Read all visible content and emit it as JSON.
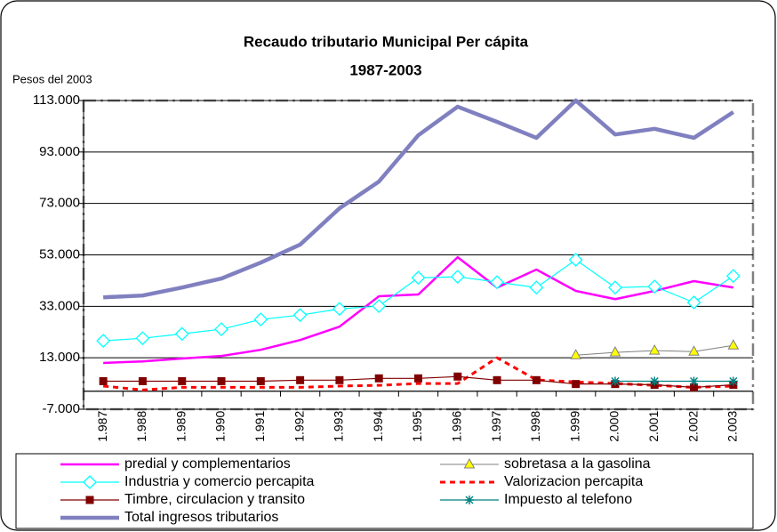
{
  "chart_data": {
    "type": "line",
    "title": "Recaudo tributario Municipal Per cápita",
    "subtitle": "1987-2003",
    "y_label": "Pesos del 2003",
    "categories": [
      "1.987",
      "1.988",
      "1.989",
      "1.990",
      "1.991",
      "1.992",
      "1.993",
      "1.994",
      "1.995",
      "1.996",
      "1.997",
      "1.998",
      "1.999",
      "2.000",
      "2.001",
      "2.002",
      "2.003"
    ],
    "ylim": [
      -7000,
      113000
    ],
    "yticks": [
      {
        "value": -7000,
        "label": "-7.000"
      },
      {
        "value": 13000,
        "label": "13.000"
      },
      {
        "value": 33000,
        "label": "33.000"
      },
      {
        "value": 53000,
        "label": "53.000"
      },
      {
        "value": 73000,
        "label": "73.000"
      },
      {
        "value": 93000,
        "label": "93.000"
      },
      {
        "value": 113000,
        "label": "113.000"
      }
    ],
    "grid": true,
    "series": [
      {
        "name": "predial y complementarios",
        "color": "#ff00ff",
        "width": 2.5,
        "marker": "none",
        "dashed": false,
        "values": [
          11000,
          11600,
          12700,
          13700,
          16100,
          19900,
          25100,
          36900,
          37600,
          52100,
          40300,
          47300,
          39000,
          35800,
          39000,
          42800,
          40300
        ]
      },
      {
        "name": "sobretasa a la gasolina",
        "color": "#808080",
        "width": 1,
        "marker": "triangle",
        "dashed": false,
        "values": [
          null,
          null,
          null,
          null,
          null,
          null,
          null,
          null,
          null,
          null,
          null,
          null,
          14000,
          15100,
          15800,
          15400,
          17800
        ]
      },
      {
        "name": "Industria y comercio percapita",
        "color": "#00ffff",
        "width": 1.2,
        "marker": "diamond",
        "dashed": false,
        "values": [
          19600,
          20600,
          22300,
          24100,
          27900,
          29600,
          32000,
          33100,
          44100,
          44500,
          42400,
          40300,
          51100,
          40300,
          40700,
          34500,
          44800
        ]
      },
      {
        "name": "Valorizacion percapita",
        "color": "#ff0000",
        "width": 3,
        "marker": "none",
        "dashed": true,
        "values": [
          2000,
          500,
          1500,
          1500,
          1500,
          1500,
          2000,
          2300,
          3000,
          3000,
          13000,
          4400,
          3600,
          3000,
          2300,
          1500,
          2000
        ]
      },
      {
        "name": "Timbre, circulacion y transito",
        "color": "#800000",
        "width": 1.2,
        "marker": "square",
        "dashed": false,
        "values": [
          3900,
          3900,
          3900,
          3900,
          3900,
          4300,
          4300,
          5000,
          5000,
          5700,
          4300,
          4300,
          2800,
          2800,
          2500,
          1500,
          2500
        ]
      },
      {
        "name": "Impuesto al telefono",
        "color": "#008080",
        "width": 1.2,
        "marker": "asterisk",
        "dashed": false,
        "values": [
          null,
          null,
          null,
          null,
          null,
          null,
          null,
          null,
          null,
          null,
          null,
          null,
          null,
          3900,
          3900,
          3900,
          3900
        ]
      },
      {
        "name": "Total ingresos tributarios",
        "color": "#8080c0",
        "width": 4.5,
        "marker": "none",
        "dashed": false,
        "values": [
          36500,
          37200,
          40300,
          43800,
          50000,
          57000,
          71100,
          81500,
          99500,
          110600,
          104700,
          98500,
          113000,
          99800,
          102000,
          98500,
          108500
        ]
      }
    ]
  }
}
